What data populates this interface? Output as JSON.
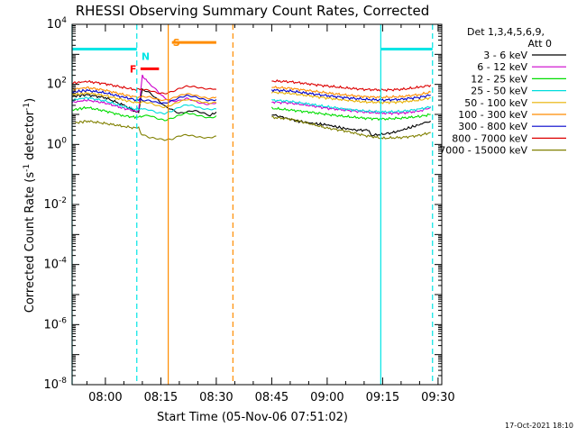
{
  "chart_data": {
    "type": "line",
    "title": "RHESSI Observing Summary Count Rates, Corrected",
    "xlabel": "Start Time (05-Nov-06 07:51:02)",
    "ylabel_main": "Corrected Count Rate (s",
    "ylabel_sup1": "-1",
    "ylabel_mid": " detector",
    "ylabel_sup2": "-1",
    "ylabel_end": ")",
    "yscale": "log",
    "ylim_exp": [
      -8,
      4
    ],
    "y_tick_exponents": [
      -8,
      -6,
      -4,
      -2,
      0,
      2,
      4
    ],
    "x_range_min": [
      471,
      571
    ],
    "x_ticks": [
      {
        "label": "08:00",
        "min": 480
      },
      {
        "label": "08:15",
        "min": 495
      },
      {
        "label": "08:30",
        "min": 510
      },
      {
        "label": "08:45",
        "min": 525
      },
      {
        "label": "09:00",
        "min": 540
      },
      {
        "label": "09:15",
        "min": 555
      },
      {
        "label": "09:30",
        "min": 570
      }
    ],
    "legend_header1": "Det 1,3,4,5,6,9,",
    "legend_header2": "Att 0",
    "series": [
      {
        "name": "3 - 6 keV",
        "color": "#000000",
        "seg1": [
          [
            471,
            40
          ],
          [
            475,
            45
          ],
          [
            480,
            36
          ],
          [
            485,
            20
          ],
          [
            488,
            13
          ],
          [
            489,
            12
          ],
          [
            490,
            70
          ],
          [
            492,
            55
          ],
          [
            494,
            34
          ],
          [
            496,
            20
          ],
          [
            498,
            15
          ],
          [
            500,
            11
          ],
          [
            502,
            12
          ],
          [
            504,
            13
          ],
          [
            506,
            11
          ],
          [
            508,
            9
          ],
          [
            509,
            10
          ],
          [
            510,
            12
          ]
        ],
        "seg2": [
          [
            525,
            10
          ],
          [
            528,
            8
          ],
          [
            532,
            6
          ],
          [
            536,
            5
          ],
          [
            540,
            4.5
          ],
          [
            544,
            3.5
          ],
          [
            548,
            3
          ],
          [
            551,
            3
          ],
          [
            552,
            2
          ],
          [
            555,
            2.2
          ],
          [
            558,
            2.5
          ],
          [
            562,
            3.5
          ],
          [
            566,
            5
          ],
          [
            568,
            6
          ]
        ]
      },
      {
        "name": "6 - 12 keV",
        "color": "#cc00cc",
        "seg1": [
          [
            471,
            25
          ],
          [
            475,
            30
          ],
          [
            480,
            24
          ],
          [
            485,
            16
          ],
          [
            488,
            13
          ],
          [
            489,
            13
          ],
          [
            490,
            200
          ],
          [
            491,
            140
          ],
          [
            492,
            100
          ],
          [
            494,
            60
          ],
          [
            496,
            35
          ],
          [
            498,
            28
          ],
          [
            500,
            30
          ],
          [
            502,
            36
          ],
          [
            504,
            30
          ],
          [
            506,
            24
          ],
          [
            508,
            22
          ],
          [
            510,
            24
          ]
        ],
        "seg2": [
          [
            525,
            26
          ],
          [
            530,
            24
          ],
          [
            535,
            20
          ],
          [
            540,
            16
          ],
          [
            545,
            14
          ],
          [
            550,
            12
          ],
          [
            555,
            11
          ],
          [
            560,
            11
          ],
          [
            565,
            13
          ],
          [
            568,
            17
          ]
        ]
      },
      {
        "name": "12 - 25 keV",
        "color": "#00dd00",
        "seg1": [
          [
            471,
            14
          ],
          [
            475,
            17
          ],
          [
            480,
            13
          ],
          [
            485,
            9
          ],
          [
            488,
            8
          ],
          [
            489,
            8
          ],
          [
            490,
            9
          ],
          [
            492,
            9
          ],
          [
            494,
            7
          ],
          [
            496,
            6
          ],
          [
            498,
            7
          ],
          [
            500,
            9
          ],
          [
            502,
            11
          ],
          [
            504,
            10
          ],
          [
            506,
            9
          ],
          [
            508,
            8
          ],
          [
            510,
            9
          ]
        ],
        "seg2": [
          [
            525,
            16
          ],
          [
            530,
            14
          ],
          [
            535,
            12
          ],
          [
            540,
            10
          ],
          [
            545,
            8.5
          ],
          [
            550,
            7.5
          ],
          [
            555,
            7
          ],
          [
            560,
            7.5
          ],
          [
            565,
            8.5
          ],
          [
            568,
            10
          ]
        ]
      },
      {
        "name": "25 - 50 keV",
        "color": "#00dddd",
        "seg1": [
          [
            471,
            30
          ],
          [
            475,
            36
          ],
          [
            480,
            28
          ],
          [
            485,
            18
          ],
          [
            488,
            15
          ],
          [
            489,
            15
          ],
          [
            490,
            16
          ],
          [
            492,
            15
          ],
          [
            494,
            12
          ],
          [
            496,
            11
          ],
          [
            498,
            13
          ],
          [
            500,
            17
          ],
          [
            502,
            20
          ],
          [
            504,
            18
          ],
          [
            506,
            15
          ],
          [
            508,
            14
          ],
          [
            510,
            15
          ]
        ],
        "seg2": [
          [
            525,
            30
          ],
          [
            530,
            27
          ],
          [
            535,
            22
          ],
          [
            540,
            18
          ],
          [
            545,
            15
          ],
          [
            550,
            13
          ],
          [
            555,
            12
          ],
          [
            560,
            12.5
          ],
          [
            565,
            15
          ],
          [
            568,
            18
          ]
        ]
      },
      {
        "name": "50 - 100 keV",
        "color": "#e8b000",
        "seg1": [
          [
            471,
            45
          ],
          [
            475,
            52
          ],
          [
            480,
            42
          ],
          [
            485,
            30
          ],
          [
            488,
            25
          ],
          [
            489,
            25
          ],
          [
            490,
            25
          ],
          [
            492,
            24
          ],
          [
            494,
            20
          ],
          [
            496,
            18
          ],
          [
            498,
            22
          ],
          [
            500,
            28
          ],
          [
            502,
            33
          ],
          [
            504,
            30
          ],
          [
            506,
            26
          ],
          [
            508,
            23
          ],
          [
            510,
            24
          ]
        ],
        "seg2": [
          [
            525,
            55
          ],
          [
            530,
            50
          ],
          [
            535,
            42
          ],
          [
            540,
            35
          ],
          [
            545,
            30
          ],
          [
            550,
            26
          ],
          [
            555,
            25
          ],
          [
            560,
            26
          ],
          [
            565,
            30
          ],
          [
            568,
            36
          ]
        ]
      },
      {
        "name": "100 - 300 keV",
        "color": "#ff8c00",
        "seg1": [
          [
            471,
            68
          ],
          [
            475,
            78
          ],
          [
            480,
            64
          ],
          [
            485,
            45
          ],
          [
            488,
            38
          ],
          [
            489,
            38
          ],
          [
            490,
            38
          ],
          [
            492,
            36
          ],
          [
            494,
            30
          ],
          [
            496,
            28
          ],
          [
            498,
            33
          ],
          [
            500,
            42
          ],
          [
            502,
            50
          ],
          [
            504,
            46
          ],
          [
            506,
            40
          ],
          [
            508,
            36
          ],
          [
            510,
            38
          ]
        ],
        "seg2": [
          [
            525,
            80
          ],
          [
            530,
            74
          ],
          [
            535,
            62
          ],
          [
            540,
            52
          ],
          [
            545,
            44
          ],
          [
            550,
            39
          ],
          [
            555,
            37
          ],
          [
            560,
            39
          ],
          [
            565,
            46
          ],
          [
            568,
            55
          ]
        ]
      },
      {
        "name": "300 - 800 keV",
        "color": "#0000cc",
        "seg1": [
          [
            471,
            55
          ],
          [
            475,
            63
          ],
          [
            480,
            52
          ],
          [
            485,
            37
          ],
          [
            488,
            31
          ],
          [
            489,
            31
          ],
          [
            490,
            31
          ],
          [
            492,
            30
          ],
          [
            494,
            25
          ],
          [
            496,
            23
          ],
          [
            498,
            27
          ],
          [
            500,
            34
          ],
          [
            502,
            40
          ],
          [
            504,
            37
          ],
          [
            506,
            32
          ],
          [
            508,
            29
          ],
          [
            510,
            31
          ]
        ],
        "seg2": [
          [
            525,
            65
          ],
          [
            530,
            60
          ],
          [
            535,
            50
          ],
          [
            540,
            42
          ],
          [
            545,
            36
          ],
          [
            550,
            32
          ],
          [
            555,
            30
          ],
          [
            560,
            32
          ],
          [
            565,
            37
          ],
          [
            568,
            44
          ]
        ]
      },
      {
        "name": "800 - 7000 keV",
        "color": "#dd0000",
        "seg1": [
          [
            471,
            110
          ],
          [
            475,
            125
          ],
          [
            480,
            105
          ],
          [
            485,
            78
          ],
          [
            488,
            68
          ],
          [
            489,
            68
          ],
          [
            490,
            68
          ],
          [
            492,
            65
          ],
          [
            494,
            55
          ],
          [
            496,
            52
          ],
          [
            498,
            60
          ],
          [
            500,
            75
          ],
          [
            502,
            88
          ],
          [
            504,
            82
          ],
          [
            506,
            72
          ],
          [
            508,
            66
          ],
          [
            510,
            68
          ]
        ],
        "seg2": [
          [
            525,
            130
          ],
          [
            530,
            122
          ],
          [
            535,
            104
          ],
          [
            540,
            88
          ],
          [
            545,
            76
          ],
          [
            550,
            68
          ],
          [
            555,
            65
          ],
          [
            560,
            68
          ],
          [
            565,
            80
          ],
          [
            568,
            95
          ]
        ]
      },
      {
        "name": "7000 - 15000 keV",
        "color": "#808000",
        "seg1": [
          [
            471,
            5
          ],
          [
            475,
            6
          ],
          [
            480,
            5
          ],
          [
            485,
            4
          ],
          [
            488,
            3.5
          ],
          [
            489,
            3.5
          ],
          [
            490,
            2
          ],
          [
            492,
            1.6
          ],
          [
            494,
            1.5
          ],
          [
            496,
            1.4
          ],
          [
            498,
            1.5
          ],
          [
            500,
            2
          ],
          [
            502,
            2.2
          ],
          [
            504,
            2
          ],
          [
            506,
            1.8
          ],
          [
            508,
            1.7
          ],
          [
            510,
            1.9
          ]
        ],
        "seg2": [
          [
            525,
            8
          ],
          [
            530,
            7
          ],
          [
            535,
            5
          ],
          [
            540,
            3.5
          ],
          [
            545,
            2.8
          ],
          [
            550,
            2
          ],
          [
            555,
            1.6
          ],
          [
            560,
            1.7
          ],
          [
            565,
            2
          ],
          [
            568,
            2.5
          ]
        ]
      }
    ],
    "bars": [
      {
        "label": "",
        "color": "#00e5e5",
        "y": 1500,
        "x1": 471,
        "x2": 488.5
      },
      {
        "label": "",
        "color": "#00e5e5",
        "y": 1500,
        "x1": 554.5,
        "x2": 568.5
      },
      {
        "label": "F",
        "color": "#ff0000",
        "y": 330,
        "x1": 489.5,
        "x2": 494.5
      },
      {
        "label": "N",
        "color": "#00e5e5",
        "y": 850,
        "x1": 489.5,
        "x2": 489.5
      },
      {
        "label": "S",
        "color": "#ff8c00",
        "y": 2500,
        "x1": 498,
        "x2": 510
      }
    ],
    "vlines": [
      {
        "x": 471,
        "color": "#00e5e5",
        "dashed": false
      },
      {
        "x": 488.5,
        "color": "#00e5e5",
        "dashed": true
      },
      {
        "x": 497,
        "color": "#ff8c00",
        "dashed": false
      },
      {
        "x": 514.5,
        "color": "#ff8c00",
        "dashed": true
      },
      {
        "x": 554.5,
        "color": "#00e5e5",
        "dashed": false
      },
      {
        "x": 568.5,
        "color": "#00e5e5",
        "dashed": true
      }
    ]
  },
  "footer": {
    "timestamp": "17-Oct-2021 18:10"
  }
}
